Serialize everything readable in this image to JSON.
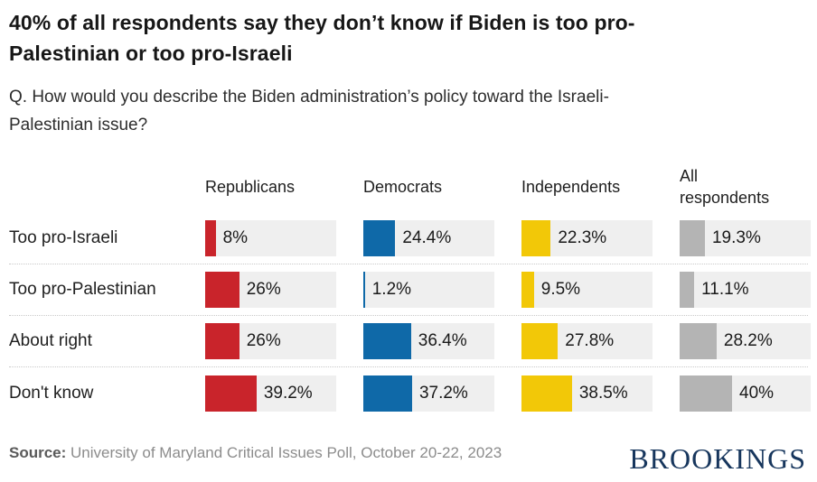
{
  "header": {
    "title": "40% of all respondents say they don’t know if Biden is too pro-Palestinian or too pro-Israeli",
    "question": "Q. How would you describe the Biden administration’s policy toward the Israeli-Palestinian issue?"
  },
  "footer": {
    "source_label": "Source:",
    "source_text": "University of Maryland Critical Issues Poll, October 20-22, 2023",
    "logo_text": "BROOKINGS"
  },
  "colors": {
    "republicans_red": "#c9242b",
    "democrats_blue": "#0f69a8",
    "independents_yellow": "#f2c808",
    "all_respondents_gray": "#b4b4b4",
    "bar_track_gray": "#efefef",
    "logo_navy": "#17365d"
  },
  "chart_data": {
    "type": "bar",
    "orientation": "horizontal",
    "title": "40% of all respondents say they don’t know if Biden is too pro-Palestinian or too pro-Israeli",
    "subtitle": "Q. How would you describe the Biden administration’s policy toward the Israeli-Palestinian issue?",
    "categories": [
      "Too pro-Israeli",
      "Too pro-Palestinian",
      "About right",
      "Don't know"
    ],
    "series": [
      {
        "name": "Republicans",
        "color": "#c9242b",
        "values": [
          8,
          26,
          26,
          39.2
        ],
        "labels": [
          "8%",
          "26%",
          "26%",
          "39.2%"
        ]
      },
      {
        "name": "Democrats",
        "color": "#0f69a8",
        "values": [
          24.4,
          1.2,
          36.4,
          37.2
        ],
        "labels": [
          "24.4%",
          "1.2%",
          "36.4%",
          "37.2%"
        ]
      },
      {
        "name": "Independents",
        "color": "#f2c808",
        "values": [
          22.3,
          9.5,
          27.8,
          38.5
        ],
        "labels": [
          "22.3%",
          "9.5%",
          "27.8%",
          "38.5%"
        ]
      },
      {
        "name": "All respondents",
        "color": "#b4b4b4",
        "values": [
          19.3,
          11.1,
          28.2,
          40
        ],
        "labels": [
          "19.3%",
          "11.1%",
          "28.2%",
          "40%"
        ]
      }
    ],
    "xlim": [
      0,
      100
    ],
    "value_axis_hidden": true,
    "grid": false,
    "legend_position": "column-headers"
  }
}
